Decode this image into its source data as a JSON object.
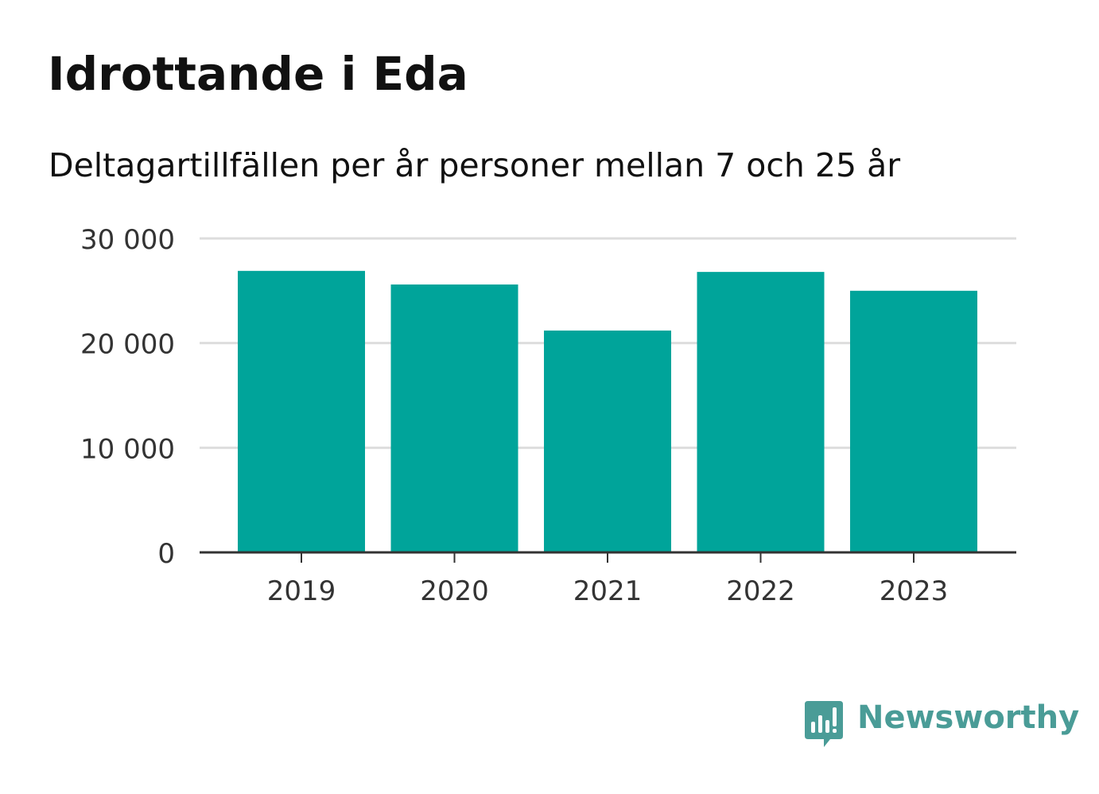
{
  "title": "Idrottande i Eda",
  "subtitle": "Deltagartillfällen per år personer mellan 7 och 25 år",
  "brand": {
    "name": "Newsworthy",
    "color": "#4a9c97",
    "icon": "bar-chart-speech-bubble-icon"
  },
  "colors": {
    "bar": "#00a49a",
    "grid": "#dddddd",
    "axis": "#333333",
    "text": "#333333"
  },
  "chart_data": {
    "type": "bar",
    "title": "Idrottande i Eda",
    "subtitle": "Deltagartillfällen per år personer mellan 7 och 25 år",
    "xlabel": "",
    "ylabel": "",
    "categories": [
      "2019",
      "2020",
      "2021",
      "2022",
      "2023"
    ],
    "values": [
      26900,
      25600,
      21200,
      26800,
      25000
    ],
    "ylim": [
      0,
      30000
    ],
    "yticks": [
      0,
      10000,
      20000,
      30000
    ],
    "ytick_labels": [
      "0",
      "10 000",
      "20 000",
      "30 000"
    ],
    "grid": true,
    "legend": "none"
  }
}
